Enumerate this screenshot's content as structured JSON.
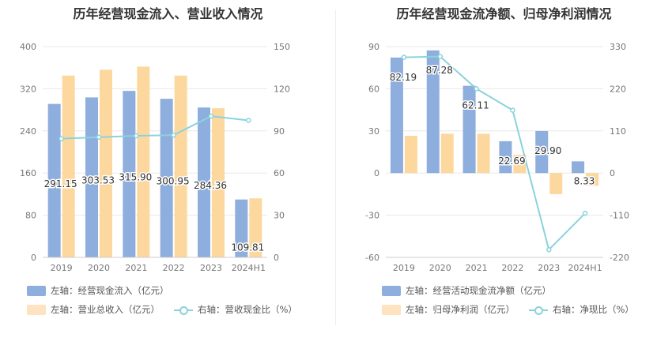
{
  "chart_data": [
    {
      "type": "bar",
      "title": "历年经营现金流入、营业收入情况",
      "categories": [
        "2019",
        "2020",
        "2021",
        "2022",
        "2023",
        "2024H1"
      ],
      "y_left": {
        "ticks": [
          "400",
          "320",
          "240",
          "160",
          "80",
          "0"
        ],
        "ylim": [
          0,
          400
        ]
      },
      "y_right": {
        "ticks": [
          "150",
          "120",
          "90",
          "60",
          "30",
          "0"
        ],
        "ylim": [
          0,
          150
        ]
      },
      "series": [
        {
          "name": "左轴：经营现金流入（亿元）",
          "type": "bar",
          "axis": "left",
          "color": "#8eaedd",
          "values": [
            291.15,
            303.53,
            315.9,
            300.95,
            284.36,
            109.81
          ],
          "labels": [
            "291.15",
            "303.53",
            "315.90",
            "300.95",
            "284.36",
            "109.81"
          ]
        },
        {
          "name": "左轴：营业总收入（亿元）",
          "type": "bar",
          "axis": "left",
          "color": "#fdd89e",
          "values": [
            345,
            356,
            362,
            345,
            283,
            112
          ]
        },
        {
          "name": "右轴：营收现金比（%）",
          "type": "line",
          "axis": "right",
          "color": "#8ad3dc",
          "values": [
            84.5,
            85.5,
            86.5,
            87,
            100.5,
            97.5
          ]
        }
      ],
      "grid": true
    },
    {
      "type": "bar",
      "title": "历年经营现金流净额、归母净利润情况",
      "categories": [
        "2019",
        "2020",
        "2021",
        "2022",
        "2023",
        "2024H1"
      ],
      "y_left": {
        "ticks": [
          "90",
          "60",
          "30",
          "0",
          "-30",
          "-60"
        ],
        "ylim": [
          -60,
          90
        ]
      },
      "y_right": {
        "ticks": [
          "330",
          "220",
          "110",
          "0",
          "-110",
          "-220"
        ],
        "ylim": [
          -220,
          330
        ]
      },
      "series": [
        {
          "name": "左轴：经营活动现金流净额（亿元）",
          "type": "bar",
          "axis": "left",
          "color": "#8eaedd",
          "values": [
            82.19,
            87.28,
            62.11,
            22.69,
            29.9,
            8.33
          ],
          "labels": [
            "82.19",
            "87.28",
            "62.11",
            "22.69",
            "29.90",
            "8.33"
          ]
        },
        {
          "name": "左轴：归母净利润（亿元）",
          "type": "bar",
          "axis": "left",
          "color": "#fdd89e",
          "values": [
            26.5,
            28,
            28,
            13,
            -15,
            -9
          ]
        },
        {
          "name": "右轴：净现比（%）",
          "type": "line",
          "axis": "right",
          "color": "#8ad3dc",
          "values": [
            302,
            304,
            220,
            164,
            -200,
            -105
          ]
        }
      ],
      "grid": true
    }
  ]
}
